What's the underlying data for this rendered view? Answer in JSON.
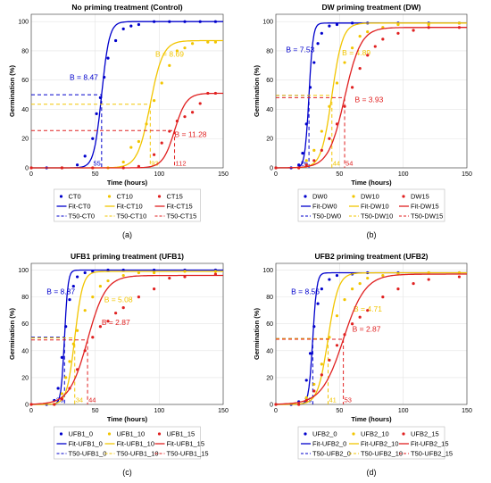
{
  "chart_data": [
    {
      "type": "line",
      "panel_label": "(a)",
      "title": "No priming treatment (Control)",
      "xlabel": "Time (hours)",
      "ylabel": "Germination (%)",
      "xlim": [
        0,
        150
      ],
      "ylim": [
        0,
        105
      ],
      "xticks": [
        0,
        50,
        100,
        150
      ],
      "yticks": [
        0,
        20,
        40,
        60,
        80,
        100
      ],
      "grid": true,
      "legend_position": "below",
      "colors": [
        "#0000cc",
        "#f2c500",
        "#e02020"
      ],
      "series": [
        {
          "marker_name": "CT0",
          "fit_name": "Fit-CT0",
          "t50_name": "T50-CT0",
          "B": 8.47,
          "B_label": "B = 8.47",
          "T50": 55,
          "T50_label": "55",
          "max": 100,
          "points": [
            [
              0,
              0
            ],
            [
              12,
              0
            ],
            [
              24,
              0
            ],
            [
              36,
              2
            ],
            [
              42,
              8
            ],
            [
              48,
              20
            ],
            [
              51,
              37
            ],
            [
              54,
              48
            ],
            [
              57,
              62
            ],
            [
              60,
              75
            ],
            [
              66,
              87
            ],
            [
              72,
              95
            ],
            [
              78,
              97
            ],
            [
              84,
              98
            ],
            [
              96,
              100
            ],
            [
              108,
              100
            ],
            [
              120,
              100
            ],
            [
              132,
              100
            ],
            [
              144,
              100
            ]
          ]
        },
        {
          "marker_name": "CT10",
          "fit_name": "Fit-CT10",
          "t50_name": "T50-CT10",
          "B": 8.69,
          "B_label": "B = 8.69",
          "T50": 93,
          "T50_label": "93",
          "max": 87,
          "points": [
            [
              0,
              0
            ],
            [
              24,
              0
            ],
            [
              48,
              0
            ],
            [
              60,
              0
            ],
            [
              72,
              4
            ],
            [
              78,
              14
            ],
            [
              84,
              18
            ],
            [
              90,
              30
            ],
            [
              96,
              46
            ],
            [
              102,
              58
            ],
            [
              108,
              70
            ],
            [
              114,
              80
            ],
            [
              120,
              82
            ],
            [
              126,
              85
            ],
            [
              138,
              86
            ],
            [
              144,
              86
            ]
          ]
        },
        {
          "marker_name": "CT15",
          "fit_name": "Fit-CT15",
          "t50_name": "T50-CT15",
          "B": 11.28,
          "B_label": "B = 11.28",
          "T50": 112,
          "T50_label": "112",
          "max": 51,
          "points": [
            [
              0,
              0
            ],
            [
              24,
              0
            ],
            [
              48,
              0
            ],
            [
              72,
              0
            ],
            [
              84,
              1
            ],
            [
              96,
              9
            ],
            [
              102,
              17
            ],
            [
              108,
              25
            ],
            [
              114,
              32
            ],
            [
              120,
              35
            ],
            [
              126,
              38
            ],
            [
              132,
              44
            ],
            [
              138,
              51
            ],
            [
              144,
              51
            ]
          ]
        }
      ]
    },
    {
      "type": "line",
      "panel_label": "(b)",
      "title": "DW priming treatment (DW)",
      "xlabel": "Time (hours)",
      "ylabel": "Germination (%)",
      "xlim": [
        0,
        150
      ],
      "ylim": [
        0,
        105
      ],
      "xticks": [
        0,
        50,
        100,
        150
      ],
      "yticks": [
        0,
        20,
        40,
        60,
        80,
        100
      ],
      "grid": true,
      "legend_position": "below",
      "colors": [
        "#0000cc",
        "#f2c500",
        "#e02020"
      ],
      "series": [
        {
          "marker_name": "DW0",
          "fit_name": "Fit-DW0",
          "t50_name": "T50-DW0",
          "B": 7.53,
          "B_label": "B = 7.53",
          "T50": 26,
          "T50_label": "26",
          "max": 99,
          "points": [
            [
              0,
              0
            ],
            [
              12,
              0
            ],
            [
              18,
              2
            ],
            [
              21,
              10
            ],
            [
              24,
              30
            ],
            [
              27,
              55
            ],
            [
              30,
              72
            ],
            [
              33,
              85
            ],
            [
              36,
              92
            ],
            [
              42,
              97
            ],
            [
              48,
              98
            ],
            [
              60,
              99
            ],
            [
              72,
              99
            ],
            [
              96,
              99
            ],
            [
              120,
              99
            ],
            [
              144,
              99
            ]
          ]
        },
        {
          "marker_name": "DW10",
          "fit_name": "Fit-DW10",
          "t50_name": "T50-DW10",
          "B": 4.89,
          "B_label": "B = 4.89",
          "T50": 44,
          "T50_label": "44",
          "max": 99,
          "points": [
            [
              0,
              0
            ],
            [
              18,
              0
            ],
            [
              24,
              5
            ],
            [
              30,
              12
            ],
            [
              36,
              25
            ],
            [
              42,
              42
            ],
            [
              48,
              58
            ],
            [
              54,
              72
            ],
            [
              60,
              82
            ],
            [
              66,
              90
            ],
            [
              72,
              93
            ],
            [
              84,
              96
            ],
            [
              96,
              98
            ],
            [
              120,
              98
            ],
            [
              144,
              99
            ]
          ]
        },
        {
          "marker_name": "DW15",
          "fit_name": "Fit-DW15",
          "t50_name": "T50-DW15",
          "B": 3.93,
          "B_label": "B = 3.93",
          "T50": 54,
          "T50_label": "54",
          "max": 96,
          "points": [
            [
              0,
              0
            ],
            [
              18,
              0
            ],
            [
              24,
              2
            ],
            [
              30,
              5
            ],
            [
              36,
              12
            ],
            [
              42,
              20
            ],
            [
              48,
              30
            ],
            [
              54,
              42
            ],
            [
              60,
              55
            ],
            [
              66,
              68
            ],
            [
              72,
              77
            ],
            [
              78,
              83
            ],
            [
              84,
              88
            ],
            [
              96,
              92
            ],
            [
              108,
              94
            ],
            [
              120,
              96
            ],
            [
              144,
              96
            ]
          ]
        }
      ]
    },
    {
      "type": "line",
      "panel_label": "(c)",
      "title": "UFB1 priming treatment (UFB1)",
      "xlabel": "Time (hours)",
      "ylabel": "Germination (%)",
      "xlim": [
        0,
        150
      ],
      "ylim": [
        0,
        105
      ],
      "xticks": [
        0,
        50,
        100,
        150
      ],
      "yticks": [
        0,
        20,
        40,
        60,
        80,
        100
      ],
      "grid": true,
      "legend_position": "below",
      "colors": [
        "#0000cc",
        "#f2c500",
        "#e02020"
      ],
      "series": [
        {
          "marker_name": "UFB1_0",
          "fit_name": "Fit-UFB1_0",
          "t50_name": "T50-UFB1_0",
          "B": 8.87,
          "B_label": "B = 8.87",
          "T50": 26,
          "T50_label": "26",
          "max": 100,
          "points": [
            [
              0,
              0
            ],
            [
              12,
              0
            ],
            [
              18,
              3
            ],
            [
              21,
              12
            ],
            [
              24,
              35
            ],
            [
              27,
              58
            ],
            [
              30,
              78
            ],
            [
              33,
              88
            ],
            [
              36,
              95
            ],
            [
              42,
              98
            ],
            [
              48,
              99
            ],
            [
              60,
              100
            ],
            [
              72,
              100
            ],
            [
              96,
              100
            ],
            [
              120,
              100
            ],
            [
              144,
              100
            ]
          ]
        },
        {
          "marker_name": "UFB1_10",
          "fit_name": "Fit-UFB1_10",
          "t50_name": "T50-UFB1_10",
          "B": 5.08,
          "B_label": "B = 5.08",
          "T50": 34,
          "T50_label": "34",
          "max": 99,
          "points": [
            [
              0,
              0
            ],
            [
              18,
              0
            ],
            [
              24,
              8
            ],
            [
              27,
              20
            ],
            [
              30,
              32
            ],
            [
              33,
              45
            ],
            [
              36,
              55
            ],
            [
              42,
              70
            ],
            [
              48,
              80
            ],
            [
              54,
              88
            ],
            [
              60,
              92
            ],
            [
              72,
              96
            ],
            [
              84,
              98
            ],
            [
              96,
              98
            ],
            [
              120,
              99
            ],
            [
              144,
              99
            ]
          ]
        },
        {
          "marker_name": "UFB1_15",
          "fit_name": "Fit-UFB1_15",
          "t50_name": "T50-UFB1_15",
          "B": 2.87,
          "B_label": "B = 2.87",
          "T50": 44,
          "T50_label": "44",
          "max": 96,
          "points": [
            [
              0,
              0
            ],
            [
              18,
              0
            ],
            [
              24,
              4
            ],
            [
              30,
              12
            ],
            [
              36,
              26
            ],
            [
              42,
              40
            ],
            [
              48,
              50
            ],
            [
              54,
              58
            ],
            [
              60,
              62
            ],
            [
              66,
              68
            ],
            [
              72,
              72
            ],
            [
              84,
              80
            ],
            [
              96,
              86
            ],
            [
              108,
              94
            ],
            [
              120,
              95
            ],
            [
              144,
              97
            ]
          ]
        }
      ]
    },
    {
      "type": "line",
      "panel_label": "(d)",
      "title": "UFB2 priming treatment (UFB2)",
      "xlabel": "Time (hours)",
      "ylabel": "Germination (%)",
      "xlim": [
        0,
        150
      ],
      "ylim": [
        0,
        105
      ],
      "xticks": [
        0,
        50,
        100,
        150
      ],
      "yticks": [
        0,
        20,
        40,
        60,
        80,
        100
      ],
      "grid": true,
      "legend_position": "below",
      "colors": [
        "#0000cc",
        "#f2c500",
        "#e02020"
      ],
      "series": [
        {
          "marker_name": "UFB2_0",
          "fit_name": "Fit-UFB2_0",
          "t50_name": "T50-UFB2_0",
          "B": 8.56,
          "B_label": "B = 8.56",
          "T50": 29,
          "T50_label": "29",
          "max": 98,
          "points": [
            [
              0,
              0
            ],
            [
              12,
              0
            ],
            [
              18,
              2
            ],
            [
              24,
              18
            ],
            [
              27,
              38
            ],
            [
              30,
              58
            ],
            [
              33,
              75
            ],
            [
              36,
              86
            ],
            [
              42,
              93
            ],
            [
              48,
              96
            ],
            [
              60,
              97
            ],
            [
              72,
              98
            ],
            [
              96,
              98
            ],
            [
              120,
              98
            ],
            [
              144,
              98
            ]
          ]
        },
        {
          "marker_name": "UFB2_10",
          "fit_name": "Fit-UFB2_10",
          "t50_name": "T50-UFB2_10",
          "B": 4.71,
          "B_label": "B = 4.71",
          "T50": 41,
          "T50_label": "41",
          "max": 98,
          "points": [
            [
              0,
              0
            ],
            [
              18,
              0
            ],
            [
              24,
              5
            ],
            [
              30,
              15
            ],
            [
              36,
              30
            ],
            [
              42,
              50
            ],
            [
              48,
              66
            ],
            [
              54,
              78
            ],
            [
              60,
              86
            ],
            [
              66,
              90
            ],
            [
              72,
              94
            ],
            [
              84,
              96
            ],
            [
              96,
              97
            ],
            [
              120,
              98
            ],
            [
              144,
              98
            ]
          ]
        },
        {
          "marker_name": "UFB2_15",
          "fit_name": "Fit-UFB2_15",
          "t50_name": "T50-UFB2_15",
          "B": 2.87,
          "B_label": "B = 2.87",
          "T50": 53,
          "T50_label": "53",
          "max": 97,
          "points": [
            [
              0,
              0
            ],
            [
              18,
              0
            ],
            [
              24,
              3
            ],
            [
              30,
              10
            ],
            [
              36,
              22
            ],
            [
              42,
              33
            ],
            [
              48,
              44
            ],
            [
              54,
              52
            ],
            [
              60,
              60
            ],
            [
              66,
              65
            ],
            [
              72,
              70
            ],
            [
              84,
              80
            ],
            [
              96,
              86
            ],
            [
              108,
              90
            ],
            [
              120,
              93
            ],
            [
              144,
              95
            ]
          ]
        }
      ]
    }
  ]
}
